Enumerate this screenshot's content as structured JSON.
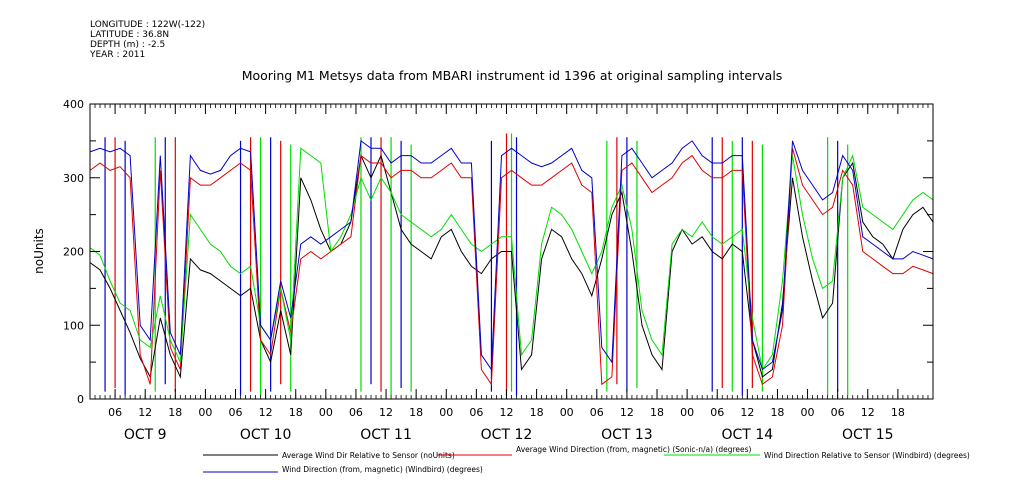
{
  "meta": {
    "longitude": "LONGITUDE : 122W(-122)",
    "latitude": "LATITUDE : 36.8N",
    "depth": "DEPTH (m) : -2.5",
    "year": "YEAR : 2011"
  },
  "chart_data": {
    "type": "line",
    "title": "Mooring M1 Metsys data from MBARI instrument id 1396 at original sampling intervals",
    "xlabel": "",
    "ylabel": "noUnits",
    "ylim": [
      0,
      400
    ],
    "xlim": [
      1,
      169
    ],
    "grid": false,
    "legend_placement": "bottom",
    "y_ticks": [
      0,
      100,
      200,
      300,
      400
    ],
    "x_hour_ticks": [
      {
        "t": 6,
        "label": "06"
      },
      {
        "t": 12,
        "label": "12"
      },
      {
        "t": 18,
        "label": "18"
      },
      {
        "t": 24,
        "label": "00"
      },
      {
        "t": 30,
        "label": "06"
      },
      {
        "t": 36,
        "label": "12"
      },
      {
        "t": 42,
        "label": "18"
      },
      {
        "t": 48,
        "label": "00"
      },
      {
        "t": 54,
        "label": "06"
      },
      {
        "t": 60,
        "label": "12"
      },
      {
        "t": 66,
        "label": "18"
      },
      {
        "t": 72,
        "label": "00"
      },
      {
        "t": 78,
        "label": "06"
      },
      {
        "t": 84,
        "label": "12"
      },
      {
        "t": 90,
        "label": "18"
      },
      {
        "t": 96,
        "label": "00"
      },
      {
        "t": 102,
        "label": "06"
      },
      {
        "t": 108,
        "label": "12"
      },
      {
        "t": 114,
        "label": "18"
      },
      {
        "t": 120,
        "label": "00"
      },
      {
        "t": 126,
        "label": "06"
      },
      {
        "t": 132,
        "label": "12"
      },
      {
        "t": 138,
        "label": "18"
      },
      {
        "t": 144,
        "label": "00"
      },
      {
        "t": 150,
        "label": "06"
      },
      {
        "t": 156,
        "label": "12"
      },
      {
        "t": 162,
        "label": "18"
      }
    ],
    "x_day_labels": [
      {
        "t": 12,
        "label": "OCT  9"
      },
      {
        "t": 36,
        "label": "OCT 10"
      },
      {
        "t": 60,
        "label": "OCT 11"
      },
      {
        "t": 84,
        "label": "OCT 12"
      },
      {
        "t": 108,
        "label": "OCT 13"
      },
      {
        "t": 132,
        "label": "OCT 14"
      },
      {
        "t": 156,
        "label": "OCT 15"
      }
    ],
    "series": [
      {
        "name": "Average Wind Dir Relative to Sensor (noUnits)",
        "color": "#000000",
        "x": [
          1,
          3,
          5,
          7,
          9,
          11,
          13,
          15,
          17,
          19,
          21,
          23,
          25,
          27,
          29,
          31,
          33,
          35,
          37,
          39,
          41,
          43,
          45,
          47,
          49,
          51,
          53,
          55,
          57,
          59,
          61,
          63,
          65,
          67,
          69,
          71,
          73,
          75,
          77,
          79,
          81,
          83,
          85,
          87,
          89,
          91,
          93,
          95,
          97,
          99,
          101,
          103,
          105,
          107,
          109,
          111,
          113,
          115,
          117,
          119,
          121,
          123,
          125,
          127,
          129,
          131,
          133,
          135,
          137,
          139,
          141,
          143,
          145,
          147,
          149,
          151,
          153,
          155,
          157,
          159,
          161,
          163,
          165,
          167,
          169
        ],
        "y": [
          185,
          175,
          150,
          120,
          90,
          55,
          30,
          110,
          60,
          30,
          190,
          175,
          170,
          160,
          150,
          140,
          150,
          80,
          50,
          120,
          60,
          300,
          270,
          230,
          200,
          210,
          240,
          330,
          300,
          330,
          280,
          230,
          210,
          200,
          190,
          220,
          230,
          200,
          180,
          170,
          190,
          200,
          200,
          40,
          60,
          190,
          230,
          220,
          190,
          170,
          140,
          190,
          250,
          280,
          200,
          100,
          60,
          40,
          200,
          230,
          210,
          220,
          200,
          190,
          210,
          200,
          80,
          30,
          40,
          130,
          300,
          220,
          160,
          110,
          130,
          300,
          320,
          240,
          220,
          210,
          190,
          230,
          250,
          260,
          240
        ]
      },
      {
        "name": "Average Wind Direction (from, magnetic) (Sonic-n/a) (degrees)",
        "color": "#e00000",
        "x": [
          1,
          3,
          5,
          7,
          9,
          11,
          13,
          15,
          17,
          19,
          21,
          23,
          25,
          27,
          29,
          31,
          33,
          35,
          37,
          39,
          41,
          43,
          45,
          47,
          49,
          51,
          53,
          55,
          57,
          59,
          61,
          63,
          65,
          67,
          69,
          71,
          73,
          75,
          77,
          79,
          81,
          83,
          85,
          87,
          89,
          91,
          93,
          95,
          97,
          99,
          101,
          103,
          105,
          107,
          109,
          111,
          113,
          115,
          117,
          119,
          121,
          123,
          125,
          127,
          129,
          131,
          133,
          135,
          137,
          139,
          141,
          143,
          145,
          147,
          149,
          151,
          153,
          155,
          157,
          159,
          161,
          163,
          165,
          167,
          169
        ],
        "y": [
          310,
          320,
          310,
          315,
          300,
          60,
          20,
          310,
          70,
          40,
          300,
          290,
          290,
          300,
          310,
          320,
          310,
          80,
          60,
          150,
          90,
          190,
          200,
          190,
          200,
          210,
          220,
          330,
          320,
          320,
          300,
          310,
          310,
          300,
          300,
          310,
          320,
          300,
          300,
          40,
          20,
          300,
          310,
          300,
          290,
          290,
          300,
          310,
          320,
          290,
          280,
          20,
          30,
          310,
          320,
          300,
          280,
          290,
          300,
          320,
          330,
          310,
          300,
          300,
          310,
          310,
          60,
          20,
          30,
          100,
          340,
          290,
          270,
          250,
          260,
          310,
          290,
          200,
          190,
          180,
          170,
          170,
          180,
          175,
          170
        ]
      },
      {
        "name": "Wind Direction Relative to Sensor (Windbird) (degrees)",
        "color": "#00dd00",
        "x": [
          1,
          3,
          5,
          7,
          9,
          11,
          13,
          15,
          17,
          19,
          21,
          23,
          25,
          27,
          29,
          31,
          33,
          35,
          37,
          39,
          41,
          43,
          45,
          47,
          49,
          51,
          53,
          55,
          57,
          59,
          61,
          63,
          65,
          67,
          69,
          71,
          73,
          75,
          77,
          79,
          81,
          83,
          85,
          87,
          89,
          91,
          93,
          95,
          97,
          99,
          101,
          103,
          105,
          107,
          109,
          111,
          113,
          115,
          117,
          119,
          121,
          123,
          125,
          127,
          129,
          131,
          133,
          135,
          137,
          139,
          141,
          143,
          145,
          147,
          149,
          151,
          153,
          155,
          157,
          159,
          161,
          163,
          165,
          167,
          169
        ],
        "y": [
          205,
          195,
          160,
          130,
          120,
          80,
          70,
          140,
          80,
          50,
          250,
          230,
          210,
          200,
          180,
          170,
          180,
          100,
          80,
          150,
          80,
          340,
          330,
          320,
          200,
          220,
          250,
          300,
          270,
          300,
          280,
          250,
          240,
          230,
          220,
          230,
          250,
          230,
          210,
          200,
          210,
          220,
          220,
          60,
          80,
          210,
          260,
          250,
          230,
          200,
          170,
          200,
          260,
          290,
          230,
          120,
          80,
          60,
          210,
          230,
          220,
          240,
          220,
          210,
          220,
          230,
          110,
          40,
          60,
          160,
          330,
          250,
          190,
          150,
          160,
          300,
          330,
          260,
          250,
          240,
          230,
          250,
          270,
          280,
          270
        ]
      },
      {
        "name": "Wind Direction (from, magnetic) (Windbird) (degrees)",
        "color": "#0000cc",
        "x": [
          1,
          3,
          5,
          7,
          9,
          11,
          13,
          15,
          17,
          19,
          21,
          23,
          25,
          27,
          29,
          31,
          33,
          35,
          37,
          39,
          41,
          43,
          45,
          47,
          49,
          51,
          53,
          55,
          57,
          59,
          61,
          63,
          65,
          67,
          69,
          71,
          73,
          75,
          77,
          79,
          81,
          83,
          85,
          87,
          89,
          91,
          93,
          95,
          97,
          99,
          101,
          103,
          105,
          107,
          109,
          111,
          113,
          115,
          117,
          119,
          121,
          123,
          125,
          127,
          129,
          131,
          133,
          135,
          137,
          139,
          141,
          143,
          145,
          147,
          149,
          151,
          153,
          155,
          157,
          159,
          161,
          163,
          165,
          167,
          169
        ],
        "y": [
          335,
          340,
          335,
          340,
          330,
          100,
          80,
          330,
          90,
          60,
          330,
          310,
          305,
          310,
          330,
          340,
          335,
          100,
          80,
          160,
          110,
          210,
          220,
          210,
          220,
          230,
          240,
          350,
          340,
          340,
          320,
          330,
          330,
          320,
          320,
          330,
          340,
          320,
          320,
          60,
          40,
          330,
          340,
          330,
          320,
          315,
          320,
          330,
          340,
          310,
          300,
          70,
          50,
          330,
          340,
          320,
          300,
          310,
          320,
          340,
          350,
          330,
          320,
          320,
          330,
          330,
          80,
          40,
          50,
          120,
          350,
          310,
          290,
          270,
          280,
          330,
          310,
          220,
          210,
          200,
          190,
          190,
          200,
          195,
          190
        ]
      }
    ],
    "vertical_spikes": [
      {
        "t": 4,
        "y0": 10,
        "y1": 355,
        "color": "#0000cc"
      },
      {
        "t": 6,
        "y0": 15,
        "y1": 355,
        "color": "#e00000"
      },
      {
        "t": 8,
        "y0": 5,
        "y1": 350,
        "color": "#0000cc"
      },
      {
        "t": 14,
        "y0": 10,
        "y1": 355,
        "color": "#00dd00"
      },
      {
        "t": 16,
        "y0": 20,
        "y1": 355,
        "color": "#0000cc"
      },
      {
        "t": 18,
        "y0": 10,
        "y1": 355,
        "color": "#e00000"
      },
      {
        "t": 31,
        "y0": 5,
        "y1": 350,
        "color": "#0000cc"
      },
      {
        "t": 33,
        "y0": 10,
        "y1": 355,
        "color": "#e00000"
      },
      {
        "t": 35,
        "y0": 5,
        "y1": 355,
        "color": "#00dd00"
      },
      {
        "t": 37,
        "y0": 10,
        "y1": 355,
        "color": "#0000cc"
      },
      {
        "t": 39,
        "y0": 20,
        "y1": 350,
        "color": "#e00000"
      },
      {
        "t": 41,
        "y0": 10,
        "y1": 345,
        "color": "#00dd00"
      },
      {
        "t": 55,
        "y0": 10,
        "y1": 355,
        "color": "#00dd00"
      },
      {
        "t": 57,
        "y0": 20,
        "y1": 355,
        "color": "#0000cc"
      },
      {
        "t": 59,
        "y0": 10,
        "y1": 355,
        "color": "#e00000"
      },
      {
        "t": 61,
        "y0": 5,
        "y1": 355,
        "color": "#00dd00"
      },
      {
        "t": 63,
        "y0": 15,
        "y1": 350,
        "color": "#0000cc"
      },
      {
        "t": 65,
        "y0": 10,
        "y1": 345,
        "color": "#00dd00"
      },
      {
        "t": 81,
        "y0": 10,
        "y1": 350,
        "color": "#0000cc"
      },
      {
        "t": 84,
        "y0": 5,
        "y1": 360,
        "color": "#e00000"
      },
      {
        "t": 85,
        "y0": 10,
        "y1": 360,
        "color": "#00dd00"
      },
      {
        "t": 86,
        "y0": 5,
        "y1": 355,
        "color": "#0000cc"
      },
      {
        "t": 104,
        "y0": 10,
        "y1": 350,
        "color": "#00dd00"
      },
      {
        "t": 106,
        "y0": 20,
        "y1": 355,
        "color": "#e00000"
      },
      {
        "t": 108,
        "y0": 10,
        "y1": 355,
        "color": "#0000cc"
      },
      {
        "t": 110,
        "y0": 15,
        "y1": 350,
        "color": "#00dd00"
      },
      {
        "t": 125,
        "y0": 10,
        "y1": 355,
        "color": "#0000cc"
      },
      {
        "t": 127,
        "y0": 15,
        "y1": 355,
        "color": "#e00000"
      },
      {
        "t": 129,
        "y0": 10,
        "y1": 350,
        "color": "#00dd00"
      },
      {
        "t": 131,
        "y0": 5,
        "y1": 355,
        "color": "#0000cc"
      },
      {
        "t": 133,
        "y0": 15,
        "y1": 350,
        "color": "#e00000"
      },
      {
        "t": 135,
        "y0": 10,
        "y1": 345,
        "color": "#00dd00"
      },
      {
        "t": 148,
        "y0": 5,
        "y1": 355,
        "color": "#00dd00"
      },
      {
        "t": 150,
        "y0": 10,
        "y1": 350,
        "color": "#0000cc"
      },
      {
        "t": 152,
        "y0": 5,
        "y1": 345,
        "color": "#00dd00"
      }
    ]
  }
}
